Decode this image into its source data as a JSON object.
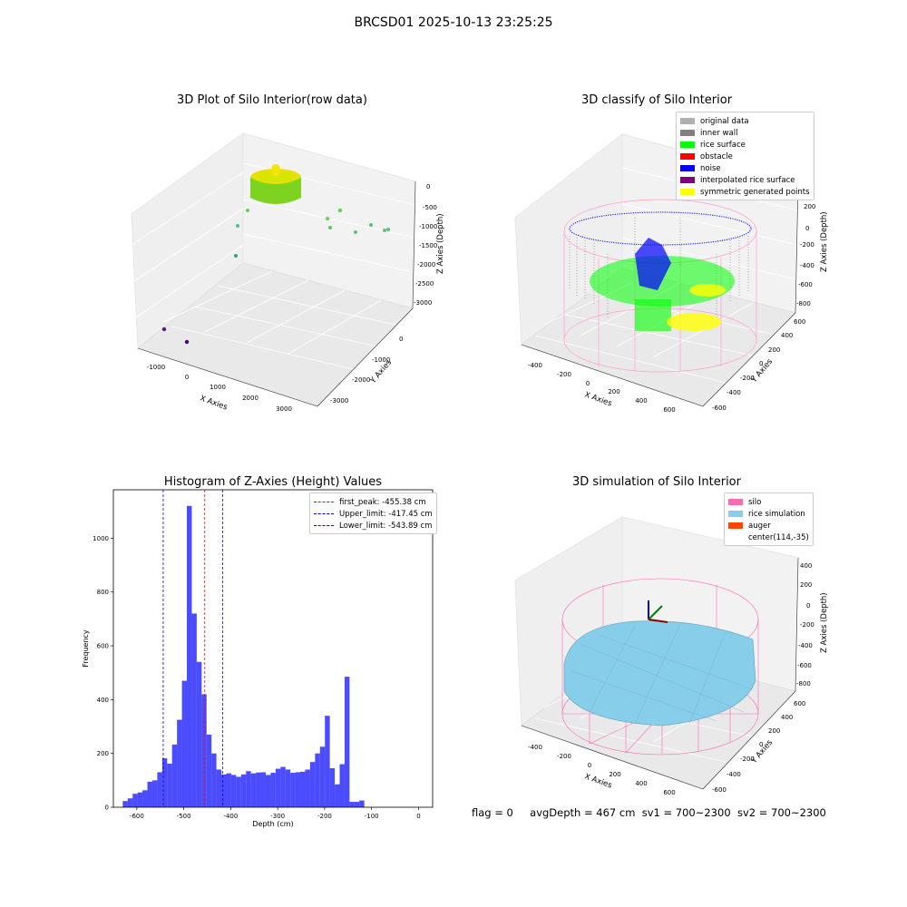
{
  "suptitle": "BRCSD01 2025-10-13 23:25:25",
  "plots": {
    "raw": {
      "title": "3D Plot of Silo Interior(row data)",
      "xlabel": "X Axies",
      "ylabel": "Y Axies",
      "zlabel": "Z Axies (Depth)",
      "xticks": [
        "-1000",
        "0",
        "1000",
        "2000",
        "3000"
      ],
      "yticks": [
        "0",
        "-1000",
        "-2000",
        "-3000"
      ],
      "zticks": [
        "0",
        "-500",
        "-1000",
        "-1500",
        "-2000",
        "-2500",
        "-3000"
      ]
    },
    "classify": {
      "title": "3D classify of Silo Interior",
      "xlabel": "X Axies",
      "ylabel": "Y Axies",
      "zlabel": "Z Axies (Depth)",
      "xticks": [
        "-400",
        "-200",
        "0",
        "200",
        "400",
        "600"
      ],
      "yticks": [
        "600",
        "400",
        "200",
        "0",
        "-200",
        "-400",
        "-600"
      ],
      "zticks": [
        "200",
        "0",
        "-200",
        "-400",
        "-600",
        "-800"
      ],
      "legend": [
        {
          "label": "original data",
          "color": "#b0b0b0"
        },
        {
          "label": "inner wall",
          "color": "#808080"
        },
        {
          "label": "rice surface",
          "color": "#00ff00"
        },
        {
          "label": "obstacle",
          "color": "#ff0000"
        },
        {
          "label": "noise",
          "color": "#0000ff"
        },
        {
          "label": "interpolated rice surface",
          "color": "#800080"
        },
        {
          "label": "symmetric generated points",
          "color": "#ffff00"
        }
      ]
    },
    "sim": {
      "title": "3D simulation of Silo Interior",
      "xlabel": "X Axies",
      "ylabel": "Y Axies",
      "zlabel": "Z Axies (Depth)",
      "xticks": [
        "-400",
        "-200",
        "0",
        "200",
        "400",
        "600"
      ],
      "yticks": [
        "600",
        "400",
        "200",
        "0",
        "-200",
        "-400",
        "-600"
      ],
      "zticks": [
        "400",
        "200",
        "0",
        "-200",
        "-400",
        "-600",
        "-800"
      ],
      "legend": [
        {
          "label": "silo",
          "color": "#ff69b4"
        },
        {
          "label": "rice simulation",
          "color": "#87ceeb"
        },
        {
          "label": "auger",
          "color": "#ff4500"
        },
        {
          "label": "center(114,-35)",
          "color": "#ffffff"
        }
      ]
    }
  },
  "chart_data": {
    "type": "bar",
    "title": "Histogram of Z-Axies (Height) Values",
    "xlabel": "Depth (cm)",
    "ylabel": "Frequency",
    "xlim": [
      -650,
      30
    ],
    "ylim": [
      0,
      1180
    ],
    "xticks": [
      -600,
      -500,
      -400,
      -300,
      -200,
      -100,
      0
    ],
    "yticks": [
      0,
      200,
      400,
      600,
      800,
      1000
    ],
    "bin_start": -630,
    "bin_width": 10.5,
    "color": "#0000ff",
    "values": [
      23,
      33,
      50,
      55,
      63,
      95,
      100,
      130,
      182,
      162,
      233,
      325,
      470,
      1120,
      720,
      540,
      420,
      270,
      200,
      140,
      122,
      126,
      120,
      113,
      122,
      134,
      126,
      129,
      130,
      120,
      128,
      143,
      150,
      140,
      128,
      130,
      132,
      140,
      168,
      200,
      225,
      340,
      145,
      85,
      160,
      485,
      20,
      20,
      25
    ],
    "lines": [
      {
        "label": "first_peak: -455.38 cm",
        "x": -455.38,
        "color": "#ff0000"
      },
      {
        "label": "Upper_limit: -417.45 cm",
        "x": -417.45,
        "color": "#0000ff"
      },
      {
        "label": "Lower_limit: -543.89 cm",
        "x": -543.89,
        "color": "#0000ff"
      }
    ],
    "legend_position": "top-right"
  },
  "status": {
    "flag": "flag = 0",
    "avg": "avgDepth = 467 cm",
    "sv1": "sv1 = 700~2300",
    "sv2": "sv2 = 700~2300"
  }
}
